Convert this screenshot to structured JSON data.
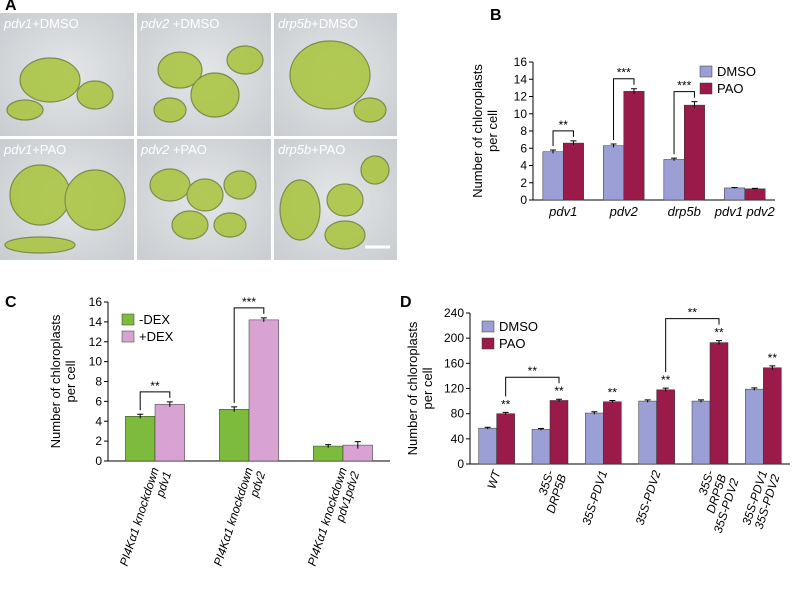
{
  "micrographs": {
    "panel_label": "A",
    "labels": [
      {
        "genotype": "pdv1",
        "treatment": "+DMSO"
      },
      {
        "genotype": "pdv2",
        "treatment": " +DMSO"
      },
      {
        "genotype": "drp5b",
        "treatment": "+DMSO"
      },
      {
        "genotype": "pdv1",
        "treatment": "+PAO"
      },
      {
        "genotype": "pdv2",
        "treatment": " +PAO"
      },
      {
        "genotype": "drp5b",
        "treatment": "+PAO"
      }
    ]
  },
  "chart_data": [
    {
      "type": "bar",
      "panel_label": "B",
      "ylabel": [
        "Number of chloroplasts",
        "per cell"
      ],
      "categories": [
        [
          "pdv1"
        ],
        [
          "pdv2"
        ],
        [
          "drp5b"
        ],
        [
          "pdv1 pdv2"
        ]
      ],
      "series": [
        {
          "name": "DMSO",
          "color": "#9c9fd6",
          "values": [
            5.6,
            6.3,
            4.7,
            1.4
          ],
          "errors": [
            0.2,
            0.2,
            0.15,
            0.05
          ]
        },
        {
          "name": "PAO",
          "color": "#9a1a4a",
          "values": [
            6.6,
            12.6,
            11.0,
            1.3
          ],
          "errors": [
            0.25,
            0.3,
            0.4,
            0.05
          ]
        }
      ],
      "ylim": [
        0,
        16
      ],
      "yticks": [
        0,
        2,
        4,
        6,
        8,
        10,
        12,
        14,
        16
      ],
      "annotations": [
        "**",
        "***",
        "***"
      ]
    },
    {
      "type": "bar",
      "panel_label": "C",
      "ylabel": [
        "Number of chloroplasts",
        "per cell"
      ],
      "categories": [
        [
          "PI4Kα1 knockdown",
          "pdv1"
        ],
        [
          "PI4Kα1 knockdown",
          "pdv2"
        ],
        [
          "PI4Kα1 knockdown",
          "pdv1pdv2"
        ]
      ],
      "series": [
        {
          "name": "-DEX",
          "color": "#7dbb3c",
          "values": [
            4.5,
            5.2,
            1.5
          ],
          "errors": [
            0.2,
            0.25,
            0.15
          ]
        },
        {
          "name": "+DEX",
          "color": "#d8a3d2",
          "values": [
            5.7,
            14.2,
            1.6
          ],
          "errors": [
            0.25,
            0.2,
            0.35
          ]
        }
      ],
      "ylim": [
        0,
        16
      ],
      "yticks": [
        0,
        2,
        4,
        6,
        8,
        10,
        12,
        14,
        16
      ],
      "annotations": [
        "**",
        "***"
      ]
    },
    {
      "type": "bar",
      "panel_label": "D",
      "ylabel": [
        "Number of chloroplasts",
        "per cell"
      ],
      "categories": [
        [
          "WT"
        ],
        [
          "35S-",
          "DRP5B"
        ],
        [
          "35S-PDV1"
        ],
        [
          "35S-PDV2"
        ],
        [
          "35S-",
          "DRP5B",
          "35S-PDV2"
        ],
        [
          "35S-PDV1",
          "35S-PDV2"
        ]
      ],
      "series": [
        {
          "name": "DMSO",
          "color": "#9c9fd6",
          "values": [
            57,
            55,
            81,
            100,
            100,
            119
          ],
          "errors": [
            1.5,
            1.5,
            2,
            2,
            2,
            2
          ]
        },
        {
          "name": "PAO",
          "color": "#9a1a4a",
          "values": [
            80,
            101,
            99,
            118,
            193,
            153
          ],
          "errors": [
            2,
            2,
            2,
            2.5,
            3,
            3
          ]
        }
      ],
      "ylim": [
        0,
        240
      ],
      "yticks": [
        0,
        40,
        80,
        120,
        160,
        200,
        240
      ],
      "annotations": [
        "**",
        "**",
        "**",
        "**",
        "**",
        "**",
        "**",
        "**"
      ]
    }
  ]
}
